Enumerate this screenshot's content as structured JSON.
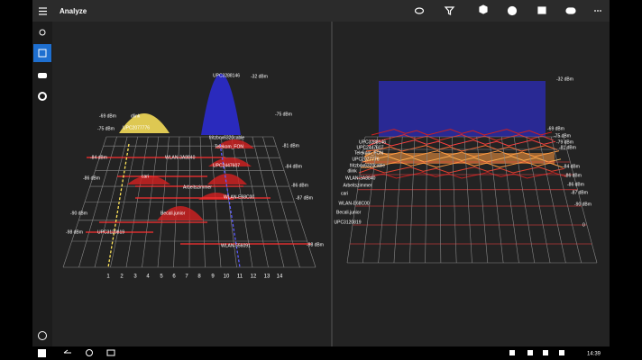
{
  "header": {
    "title": "Analyze"
  },
  "left_view": {
    "channels": [
      "1",
      "2",
      "3",
      "4",
      "5",
      "6",
      "7",
      "8",
      "9",
      "10",
      "11",
      "12",
      "13",
      "14"
    ],
    "right_levels": [
      "-32 dBm",
      "-75 dBm",
      "-81 dBm",
      "-84 dBm",
      "-86 dBm",
      "-87 dBm",
      "-98 dBm"
    ],
    "left_levels": [
      "-69 dBm",
      "-75 dBm",
      "-84 dBm",
      "-86 dBm",
      "-90 dBm",
      "-98 dBm"
    ],
    "networks": [
      "UPC3288146",
      "dlink",
      "UPC2077776",
      "fritzbox6320cable",
      "Telekom_FON",
      "WLAN-3A8840",
      "UPC2447607",
      "cari",
      "Arbeitszimmer",
      "WLAN-E68C00",
      "Becali.junior",
      "UPC3120819",
      "WLAN-556091"
    ]
  },
  "right_view": {
    "networks": [
      "UPC3288146",
      "UPC2447607",
      "Telekom_FON",
      "UPC2077776",
      "fritzbox6320cable",
      "dlink",
      "WLAN-3A8840",
      "Arbeitszimmer",
      "cari",
      "WLAN-E68C00",
      "Becali.junior",
      "UPC3120819"
    ],
    "levels": [
      "-32 dBm",
      "-69 dBm",
      "-75 dBm",
      "-79 dBm",
      "-81 dBm",
      "-84 dBm",
      "-86 dBm",
      "-86 dBm",
      "-87 dBm",
      "-90 dBm",
      "0"
    ]
  },
  "taskbar": {
    "time": "14:39"
  }
}
